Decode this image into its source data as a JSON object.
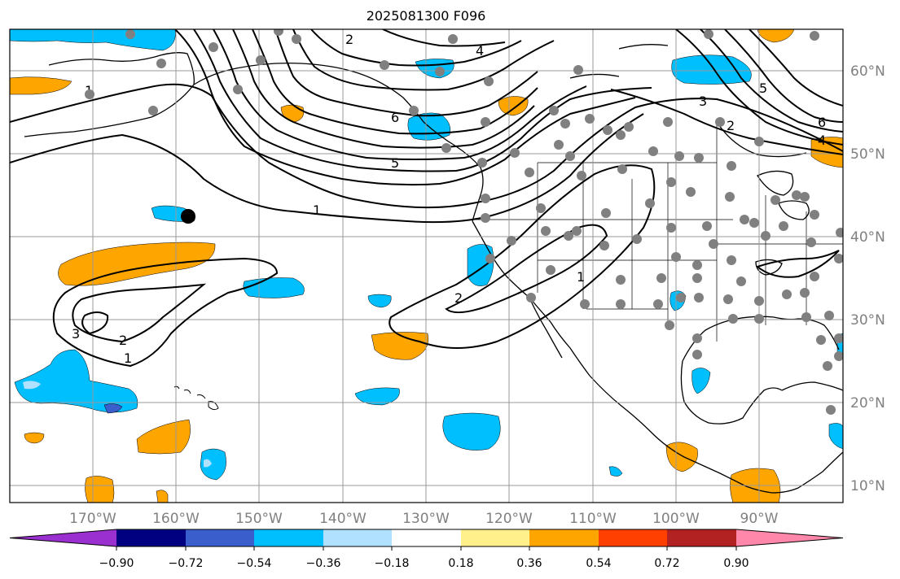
{
  "title": "2025081300 F096",
  "longitude_labels": [
    "170°W",
    "160°W",
    "150°W",
    "140°W",
    "130°W",
    "120°W",
    "110°W",
    "100°W",
    "90°W"
  ],
  "latitude_labels": [
    "60°N",
    "50°N",
    "40°N",
    "30°N",
    "20°N",
    "10°N"
  ],
  "contour_labels": [
    "1",
    "2",
    "3",
    "4",
    "5",
    "6",
    "1",
    "2",
    "1",
    "2",
    "3",
    "4",
    "5",
    "6",
    "1",
    "2"
  ],
  "colorbar": {
    "tick_labels": [
      "−0.90",
      "−0.72",
      "−0.54",
      "−0.36",
      "−0.18",
      "0.18",
      "0.36",
      "0.54",
      "0.72",
      "0.90"
    ],
    "colors": [
      "#9b30d0",
      "#000080",
      "#3a5fcd",
      "#00bfff",
      "#b0e2ff",
      "#ffffff",
      "#fff08c",
      "#ffa500",
      "#ff4000",
      "#b22222",
      "#ff88aa"
    ]
  },
  "colors": {
    "positive_anomaly": "#ffa500",
    "negative_anomaly": "#00bfff",
    "strong_negative": "#3a5fcd",
    "station_marker": "#808080",
    "highlight_marker": "#000000",
    "gridline": "#999999"
  },
  "markers": {
    "station": "gray-dot",
    "highlight": "black-dot"
  }
}
